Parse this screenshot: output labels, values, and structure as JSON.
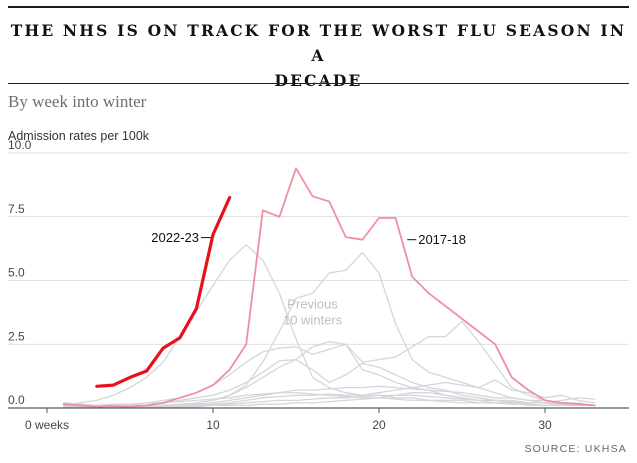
{
  "title_line1": "THE NHS IS ON TRACK FOR THE WORST FLU SEASON IN A",
  "title_line2": "DECADE",
  "subtitle": "By week into winter",
  "source": "SOURCE: UKHSA",
  "chart_data": {
    "type": "line",
    "title": "THE NHS IS ON TRACK FOR THE WORST FLU SEASON IN A DECADE",
    "subtitle": "By week into winter",
    "ylabel": "Admission rates per 100k",
    "xlabel": "",
    "xlim": [
      -1,
      34
    ],
    "ylim": [
      0,
      10
    ],
    "yticks": [
      0,
      2.5,
      5,
      7.5,
      10
    ],
    "ytick_labels": [
      "0.0",
      "2.5",
      "5.0",
      "7.5",
      "10.0"
    ],
    "xticks": [
      0,
      10,
      20,
      30
    ],
    "xtick_labels": [
      "0 weeks",
      "10",
      "20",
      "30"
    ],
    "grid": "horizontal",
    "annotations": {
      "current": "2022-23",
      "peak": "2017-18",
      "others": "Previous 10 winters"
    },
    "colors": {
      "current": "#e8101d",
      "peak": "#f08fa0",
      "others": "#d3d6db",
      "others_label": "#b8bec8"
    },
    "series": [
      {
        "name": "2022-23",
        "color": "#e8101d",
        "x": [
          3,
          4,
          5,
          6,
          7,
          8,
          9,
          10,
          11
        ],
        "y": [
          0.85,
          0.9,
          1.2,
          1.45,
          2.35,
          2.75,
          3.9,
          6.8,
          8.25
        ]
      },
      {
        "name": "2017-18",
        "color": "#f08fa0",
        "x": [
          1,
          2,
          3,
          4,
          5,
          6,
          7,
          8,
          9,
          10,
          11,
          12,
          13,
          14,
          15,
          16,
          17,
          18,
          19,
          20,
          21,
          22,
          23,
          24,
          25,
          26,
          27,
          28,
          29,
          30,
          31,
          32,
          33
        ],
        "y": [
          0.15,
          0.1,
          0.05,
          0.08,
          0.05,
          0.1,
          0.2,
          0.4,
          0.6,
          0.9,
          1.5,
          2.5,
          7.75,
          7.5,
          9.4,
          8.3,
          8.1,
          6.7,
          6.6,
          7.45,
          7.45,
          5.15,
          4.5,
          4.0,
          3.5,
          3.0,
          2.5,
          1.2,
          0.7,
          0.3,
          0.2,
          0.15,
          0.1
        ]
      },
      {
        "color": "#d3d6db",
        "x": [
          1,
          2,
          3,
          4,
          5,
          6,
          7,
          8,
          9,
          10,
          11,
          12,
          13,
          14,
          15,
          16,
          17,
          18,
          19,
          20,
          21,
          22,
          23,
          24,
          25,
          26,
          27,
          28,
          29,
          30,
          31,
          32,
          33
        ],
        "y": [
          0.1,
          0.2,
          0.3,
          0.5,
          0.8,
          1.2,
          1.8,
          2.8,
          3.8,
          4.8,
          5.8,
          6.4,
          5.8,
          4.5,
          2.7,
          1.2,
          0.8,
          0.6,
          0.5,
          0.5,
          0.4,
          0.4,
          0.3,
          0.3,
          0.3,
          0.2,
          0.2,
          0.2,
          0.2,
          0.2,
          0.1,
          0.1,
          0.1
        ]
      },
      {
        "color": "#d3d6db",
        "x": [
          1,
          2,
          3,
          4,
          5,
          6,
          7,
          8,
          9,
          10,
          11,
          12,
          13,
          14,
          15,
          16,
          17,
          18,
          19,
          20,
          21,
          22,
          23,
          24,
          25,
          26,
          27,
          28,
          29,
          30,
          31,
          32,
          33
        ],
        "y": [
          0.05,
          0.05,
          0.05,
          0.05,
          0.05,
          0.1,
          0.1,
          0.15,
          0.2,
          0.3,
          0.5,
          0.9,
          1.8,
          3.0,
          4.3,
          4.5,
          5.3,
          5.4,
          6.1,
          5.3,
          3.3,
          1.9,
          1.4,
          1.2,
          1.0,
          0.8,
          0.6,
          0.4,
          0.3,
          0.2,
          0.2,
          0.1,
          0.1
        ]
      },
      {
        "color": "#d3d6db",
        "x": [
          1,
          2,
          3,
          4,
          5,
          6,
          7,
          8,
          9,
          10,
          11,
          12,
          13,
          14,
          15,
          16,
          17,
          18,
          19,
          20,
          21,
          22,
          23,
          24,
          25,
          26,
          27,
          28,
          29,
          30,
          31,
          32,
          33
        ],
        "y": [
          0.05,
          0.05,
          0.05,
          0.05,
          0.05,
          0.05,
          0.1,
          0.1,
          0.2,
          0.3,
          0.5,
          0.8,
          1.2,
          1.6,
          1.9,
          2.4,
          2.6,
          2.5,
          1.8,
          1.9,
          2.0,
          2.4,
          2.8,
          2.8,
          3.4,
          2.6,
          1.7,
          0.8,
          0.5,
          0.3,
          0.2,
          0.1,
          0.1
        ]
      },
      {
        "color": "#d3d6db",
        "x": [
          1,
          2,
          3,
          4,
          5,
          6,
          7,
          8,
          9,
          10,
          11,
          12,
          13,
          14,
          15,
          16,
          17,
          18,
          19,
          20,
          21,
          22,
          23,
          24,
          25,
          26,
          27,
          28,
          29,
          30,
          31,
          32,
          33
        ],
        "y": [
          0.05,
          0.05,
          0.05,
          0.1,
          0.1,
          0.2,
          0.3,
          0.4,
          0.6,
          0.9,
          1.3,
          1.8,
          2.2,
          2.35,
          2.4,
          2.1,
          2.3,
          2.5,
          1.5,
          1.3,
          1.0,
          0.8,
          0.7,
          0.5,
          0.4,
          0.3,
          0.2,
          0.2,
          0.1,
          0.1,
          0.1,
          0.1,
          0.1
        ]
      },
      {
        "color": "#d3d6db",
        "x": [
          1,
          2,
          3,
          4,
          5,
          6,
          7,
          8,
          9,
          10,
          11,
          12,
          13,
          14,
          15,
          16,
          17,
          18,
          19,
          20,
          21,
          22,
          23,
          24,
          25,
          26,
          27,
          28,
          29,
          30,
          31,
          32,
          33
        ],
        "y": [
          0.05,
          0.05,
          0.05,
          0.05,
          0.1,
          0.1,
          0.2,
          0.3,
          0.4,
          0.5,
          0.7,
          1.0,
          1.4,
          1.85,
          1.9,
          1.5,
          1.0,
          1.3,
          1.75,
          1.6,
          1.3,
          1.0,
          0.8,
          0.7,
          0.5,
          0.4,
          0.3,
          0.3,
          0.2,
          0.2,
          0.1,
          0.1,
          0.1
        ]
      },
      {
        "color": "#d3d6db",
        "x": [
          1,
          2,
          3,
          4,
          5,
          6,
          7,
          8,
          9,
          10,
          11,
          12,
          13,
          14,
          15,
          16,
          17,
          18,
          19,
          20,
          21,
          22,
          23,
          24,
          25,
          26,
          27,
          28,
          29,
          30,
          31,
          32,
          33
        ],
        "y": [
          0.05,
          0.05,
          0.05,
          0.05,
          0.05,
          0.05,
          0.1,
          0.1,
          0.15,
          0.2,
          0.3,
          0.4,
          0.5,
          0.6,
          0.7,
          0.7,
          0.75,
          0.8,
          0.8,
          0.85,
          0.8,
          0.75,
          0.7,
          0.65,
          0.6,
          0.5,
          0.4,
          0.4,
          0.3,
          0.3,
          0.2,
          0.2,
          0.1
        ]
      },
      {
        "color": "#d3d6db",
        "x": [
          1,
          2,
          3,
          4,
          5,
          6,
          7,
          8,
          9,
          10,
          11,
          12,
          13,
          14,
          15,
          16,
          17,
          18,
          19,
          20,
          21,
          22,
          23,
          24,
          25,
          26,
          27,
          28,
          29,
          30,
          31,
          32,
          33
        ],
        "y": [
          0.05,
          0.05,
          0.05,
          0.05,
          0.05,
          0.05,
          0.05,
          0.1,
          0.1,
          0.15,
          0.2,
          0.3,
          0.4,
          0.45,
          0.5,
          0.5,
          0.55,
          0.5,
          0.5,
          0.6,
          0.7,
          0.8,
          0.9,
          1.0,
          0.9,
          0.8,
          1.1,
          0.7,
          0.6,
          0.4,
          0.5,
          0.3,
          0.2
        ]
      },
      {
        "color": "#d3d6db",
        "x": [
          1,
          2,
          3,
          4,
          5,
          6,
          7,
          8,
          9,
          10,
          11,
          12,
          13,
          14,
          15,
          16,
          17,
          18,
          19,
          20,
          21,
          22,
          23,
          24,
          25,
          26,
          27,
          28,
          29,
          30,
          31,
          32,
          33
        ],
        "y": [
          0.05,
          0.05,
          0.05,
          0.05,
          0.05,
          0.05,
          0.05,
          0.05,
          0.1,
          0.1,
          0.15,
          0.2,
          0.25,
          0.3,
          0.3,
          0.35,
          0.4,
          0.4,
          0.45,
          0.5,
          0.5,
          0.5,
          0.45,
          0.4,
          0.35,
          0.3,
          0.3,
          0.25,
          0.2,
          0.2,
          0.15,
          0.15,
          0.1
        ]
      },
      {
        "color": "#d3d6db",
        "x": [
          1,
          2,
          3,
          4,
          5,
          6,
          7,
          8,
          9,
          10,
          11,
          12,
          13,
          14,
          15,
          16,
          17,
          18,
          19,
          20,
          21,
          22,
          23,
          24,
          25,
          26,
          27,
          28,
          29,
          30,
          31,
          32,
          33
        ],
        "y": [
          0.1,
          0.1,
          0.1,
          0.15,
          0.15,
          0.2,
          0.2,
          0.25,
          0.3,
          0.35,
          0.4,
          0.5,
          0.55,
          0.6,
          0.6,
          0.55,
          0.5,
          0.45,
          0.4,
          0.4,
          0.35,
          0.3,
          0.3,
          0.25,
          0.2,
          0.2,
          0.2,
          0.15,
          0.15,
          0.1,
          0.1,
          0.1,
          0.1
        ]
      },
      {
        "color": "#d3d6db",
        "x": [
          1,
          2,
          3,
          4,
          5,
          6,
          7,
          8,
          9,
          10,
          11,
          12,
          13,
          14,
          15,
          16,
          17,
          18,
          19,
          20,
          21,
          22,
          23,
          24,
          25,
          26,
          27,
          28,
          29,
          30,
          31,
          32,
          33
        ],
        "y": [
          0.2,
          0.15,
          0.1,
          0.1,
          0.05,
          0.05,
          0.05,
          0.05,
          0.05,
          0.1,
          0.1,
          0.1,
          0.15,
          0.15,
          0.2,
          0.2,
          0.25,
          0.3,
          0.35,
          0.4,
          0.5,
          0.6,
          0.6,
          0.5,
          0.4,
          0.3,
          0.3,
          0.2,
          0.2,
          0.2,
          0.3,
          0.4,
          0.35
        ]
      }
    ]
  }
}
